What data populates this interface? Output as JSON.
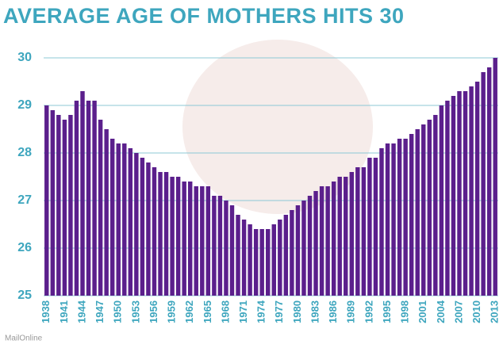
{
  "chart_data": {
    "type": "bar",
    "title": "AVERAGE AGE OF MOTHERS HITS 30",
    "categories": [
      "1938",
      null,
      null,
      "1941",
      null,
      null,
      "1944",
      null,
      null,
      "1947",
      null,
      null,
      "1950",
      null,
      null,
      "1953",
      null,
      null,
      "1956",
      null,
      null,
      "1959",
      null,
      null,
      "1962",
      null,
      null,
      "1965",
      null,
      null,
      "1968",
      null,
      null,
      "1971",
      null,
      null,
      "1974",
      null,
      null,
      "1977",
      null,
      null,
      "1980",
      null,
      null,
      "1983",
      null,
      null,
      "1986",
      null,
      null,
      "1989",
      null,
      null,
      "1992",
      null,
      null,
      "1995",
      null,
      null,
      "1998",
      null,
      null,
      "2001",
      null,
      null,
      "2004",
      null,
      null,
      "2007",
      null,
      null,
      "2010",
      null,
      null,
      "2013"
    ],
    "values": [
      29.0,
      28.9,
      28.8,
      28.7,
      28.8,
      29.1,
      29.3,
      29.1,
      29.1,
      28.7,
      28.5,
      28.3,
      28.2,
      28.2,
      28.1,
      28.0,
      27.9,
      27.8,
      27.7,
      27.6,
      27.6,
      27.5,
      27.5,
      27.4,
      27.4,
      27.3,
      27.3,
      27.3,
      27.1,
      27.1,
      27.0,
      26.9,
      26.7,
      26.6,
      26.5,
      26.4,
      26.4,
      26.4,
      26.5,
      26.6,
      26.7,
      26.8,
      26.9,
      27.0,
      27.1,
      27.2,
      27.3,
      27.3,
      27.4,
      27.5,
      27.5,
      27.6,
      27.7,
      27.7,
      27.9,
      27.9,
      28.1,
      28.2,
      28.2,
      28.3,
      28.3,
      28.4,
      28.5,
      28.6,
      28.7,
      28.8,
      29.0,
      29.1,
      29.2,
      29.3,
      29.3,
      29.4,
      29.5,
      29.7,
      29.8,
      30.0
    ],
    "color": "#5b1f8c",
    "ylim": [
      25,
      30.4
    ],
    "yticks": [
      25,
      26,
      27,
      28,
      29,
      30
    ],
    "grid": true,
    "source": "MailOnline"
  }
}
